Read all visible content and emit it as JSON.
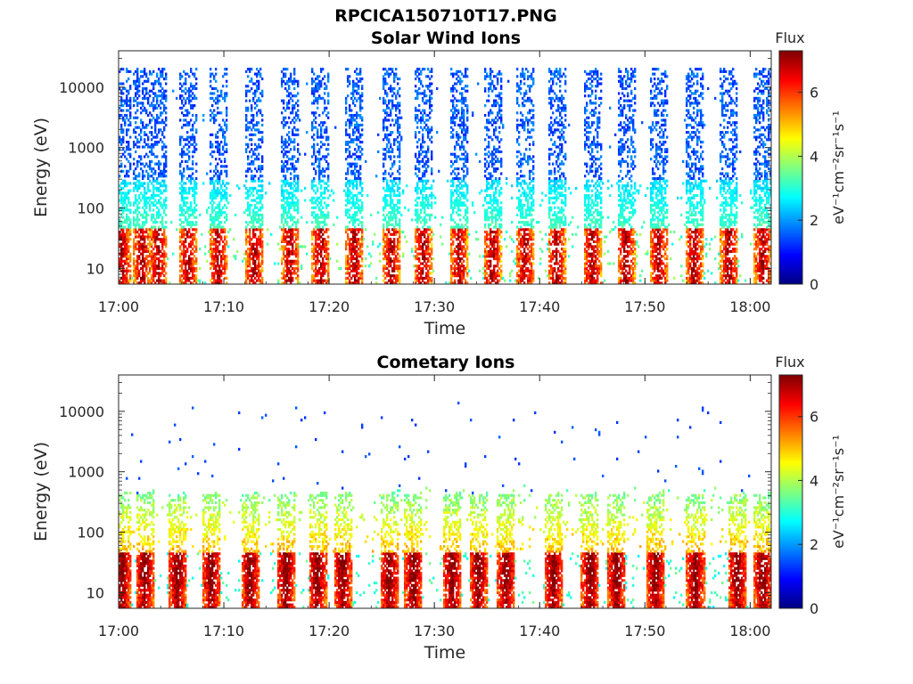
{
  "figure_title": "RPCICA150710T17.PNG",
  "chart_data": [
    {
      "type": "heatmap",
      "title": "Solar Wind Ions",
      "xlabel": "Time",
      "ylabel": "Energy (eV)",
      "x_ticks": [
        "17:00",
        "17:10",
        "17:20",
        "17:30",
        "17:40",
        "17:50",
        "18:00"
      ],
      "x_range_minutes": [
        0,
        62
      ],
      "y_scale": "log",
      "y_range_ev": [
        5.5,
        40000
      ],
      "y_ticks": [
        {
          "value": 10,
          "label": "10"
        },
        {
          "value": 100,
          "label": "100"
        },
        {
          "value": 1000,
          "label": "1000"
        },
        {
          "value": 10000,
          "label": "10000"
        }
      ],
      "colorbar": {
        "label_top": "Flux",
        "label_side": "eV⁻¹cm⁻²sr⁻¹s⁻¹",
        "range": [
          0,
          7.3
        ],
        "ticks": [
          0,
          2,
          4,
          6
        ],
        "colormap": "jet"
      },
      "bursts_minute": [
        0.3,
        2.2,
        3.8,
        6.6,
        9.5,
        12.9,
        16.3,
        19.2,
        22.4,
        25.9,
        28.9,
        32.3,
        35.5,
        38.6,
        41.6,
        45.0,
        48.2,
        51.3,
        54.7,
        58.0,
        61.2
      ],
      "peak_flux_low_energy": 6.5,
      "peak_flux_high_energy": 2.3,
      "grid": false
    },
    {
      "type": "heatmap",
      "title": "Cometary Ions",
      "xlabel": "Time",
      "ylabel": "Energy (eV)",
      "x_ticks": [
        "17:00",
        "17:10",
        "17:20",
        "17:30",
        "17:40",
        "17:50",
        "18:00"
      ],
      "x_range_minutes": [
        0,
        62
      ],
      "y_scale": "log",
      "y_range_ev": [
        5.5,
        40000
      ],
      "y_ticks": [
        {
          "value": 10,
          "label": "10"
        },
        {
          "value": 100,
          "label": "100"
        },
        {
          "value": 1000,
          "label": "1000"
        },
        {
          "value": 10000,
          "label": "10000"
        }
      ],
      "colorbar": {
        "label_top": "Flux",
        "label_side": "eV⁻¹cm⁻²sr⁻¹s⁻¹",
        "range": [
          0,
          7.3
        ],
        "ticks": [
          0,
          2,
          4,
          6
        ],
        "colormap": "jet"
      },
      "bursts_minute": [
        0.3,
        2.5,
        5.6,
        8.8,
        12.5,
        15.9,
        18.9,
        21.3,
        25.7,
        28.0,
        31.7,
        34.2,
        36.8,
        41.3,
        44.8,
        47.3,
        51.0,
        54.8,
        58.8,
        61.2
      ],
      "peak_flux_low_energy": 7.0,
      "peak_flux_high_energy": 3.0,
      "grid": false
    }
  ]
}
